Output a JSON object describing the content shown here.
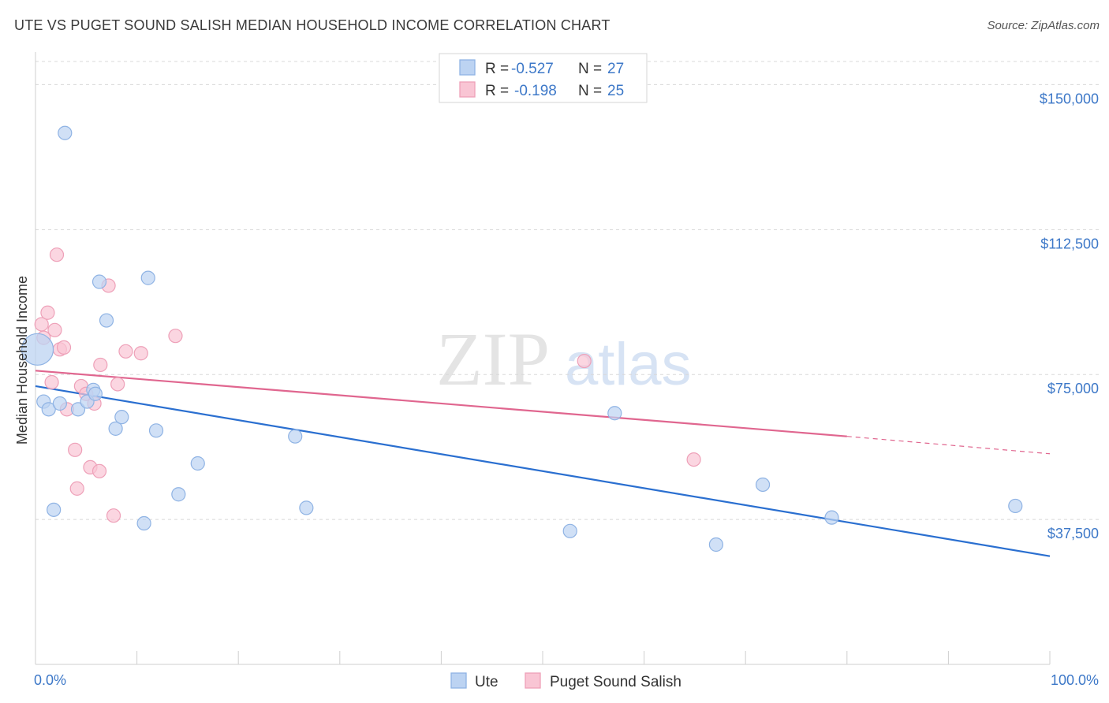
{
  "header": {
    "title": "UTE VS PUGET SOUND SALISH MEDIAN HOUSEHOLD INCOME CORRELATION CHART",
    "source": "Source: ZipAtlas.com"
  },
  "watermark": {
    "zip": "ZIP",
    "atlas": "atlas"
  },
  "colors": {
    "ute_fill": "#bcd3f2",
    "ute_stroke": "#8fb3e4",
    "ute_line": "#2a6fd0",
    "salish_fill": "#f9c5d4",
    "salish_stroke": "#eea0b8",
    "salish_line": "#e0668f",
    "grid": "#d8d8d8",
    "axis_text": "#3d78c8"
  },
  "stats": {
    "ute": {
      "r_label": "R =",
      "r_value": "-0.527",
      "n_label": "N =",
      "n_value": "27"
    },
    "salish": {
      "r_label": "R =",
      "r_value": "-0.198",
      "n_label": "N =",
      "n_value": "25"
    }
  },
  "chart_data": {
    "type": "scatter",
    "title": "UTE VS PUGET SOUND SALISH MEDIAN HOUSEHOLD INCOME CORRELATION CHART",
    "xlabel": "",
    "ylabel": "Median Household Income",
    "xlim": [
      0,
      100
    ],
    "ylim": [
      0,
      156000
    ],
    "x_tick_labels": [
      "0.0%",
      "100.0%"
    ],
    "y_ticks": [
      37500,
      75000,
      112500,
      150000
    ],
    "y_tick_labels": [
      "$37,500",
      "$75,000",
      "$112,500",
      "$150,000"
    ],
    "legend": [
      "Ute",
      "Puget Sound Salish"
    ],
    "series": [
      {
        "name": "Ute",
        "points": [
          [
            2.9,
            137500
          ],
          [
            0.8,
            68000
          ],
          [
            1.3,
            66000
          ],
          [
            2.4,
            67500
          ],
          [
            4.2,
            66000
          ],
          [
            5.1,
            68000
          ],
          [
            5.7,
            71000
          ],
          [
            5.9,
            70000
          ],
          [
            6.3,
            99000
          ],
          [
            7.0,
            89000
          ],
          [
            7.9,
            61000
          ],
          [
            8.5,
            64000
          ],
          [
            11.1,
            100000
          ],
          [
            11.9,
            60500
          ],
          [
            10.7,
            36500
          ],
          [
            14.1,
            44000
          ],
          [
            16.0,
            52000
          ],
          [
            1.8,
            40000
          ],
          [
            25.6,
            59000
          ],
          [
            26.7,
            40500
          ],
          [
            52.7,
            34500
          ],
          [
            57.1,
            65000
          ],
          [
            67.1,
            31000
          ],
          [
            71.7,
            46500
          ],
          [
            78.5,
            38000
          ],
          [
            96.6,
            41000
          ],
          [
            0.2,
            81500
          ]
        ],
        "trend": [
          [
            0,
            72000
          ],
          [
            100,
            28000
          ]
        ]
      },
      {
        "name": "Puget Sound Salish",
        "points": [
          [
            0.6,
            88000
          ],
          [
            0.8,
            84500
          ],
          [
            1.2,
            91000
          ],
          [
            1.6,
            73000
          ],
          [
            1.9,
            86500
          ],
          [
            2.1,
            106000
          ],
          [
            2.4,
            81500
          ],
          [
            2.8,
            82000
          ],
          [
            3.1,
            66000
          ],
          [
            3.9,
            55500
          ],
          [
            4.1,
            45500
          ],
          [
            4.5,
            72000
          ],
          [
            5.0,
            70000
          ],
          [
            5.4,
            51000
          ],
          [
            5.8,
            67500
          ],
          [
            6.3,
            50000
          ],
          [
            6.4,
            77500
          ],
          [
            7.2,
            98000
          ],
          [
            7.7,
            38500
          ],
          [
            8.1,
            72500
          ],
          [
            8.9,
            81000
          ],
          [
            10.4,
            80500
          ],
          [
            13.8,
            85000
          ],
          [
            54.1,
            78500
          ],
          [
            64.9,
            53000
          ]
        ],
        "trend": [
          [
            0,
            76000
          ],
          [
            80,
            59000
          ]
        ],
        "trend_dashed": [
          [
            80,
            59000
          ],
          [
            100,
            54500
          ]
        ]
      }
    ]
  }
}
